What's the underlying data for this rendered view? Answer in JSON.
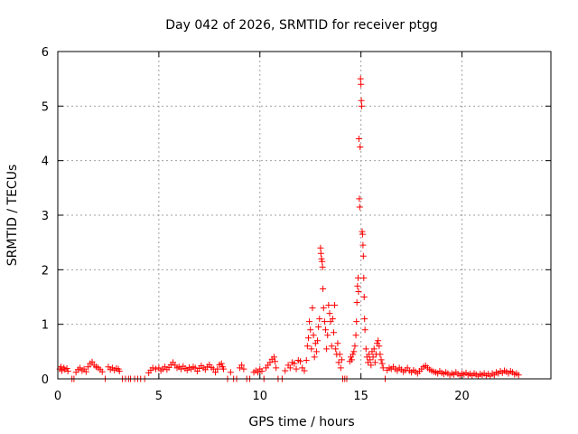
{
  "chart_data": {
    "type": "scatter",
    "title": "Day 042 of 2026, SRMTID for receiver ptgg",
    "xlabel": "GPS time / hours",
    "ylabel": "SRMTID / TECUs",
    "xlim": [
      0,
      24.4
    ],
    "ylim": [
      0,
      6
    ],
    "xticks": [
      0,
      5,
      10,
      15,
      20
    ],
    "yticks": [
      0,
      1,
      2,
      3,
      4,
      5,
      6
    ],
    "xtick_labels": [
      "0",
      "5",
      "10",
      "15",
      "20"
    ],
    "ytick_labels": [
      "0",
      "1",
      "2",
      "3",
      "4",
      "5",
      "6"
    ],
    "grid": true,
    "marker": "+",
    "series": [
      {
        "name": "SRMTID",
        "color": "#ff0000",
        "points": [
          [
            0.1,
            0.18
          ],
          [
            0.15,
            0.22
          ],
          [
            0.2,
            0.15
          ],
          [
            0.3,
            0.2
          ],
          [
            0.35,
            0.17
          ],
          [
            0.45,
            0.19
          ],
          [
            0.5,
            0.14
          ],
          [
            0.7,
            0.0
          ],
          [
            0.8,
            0.0
          ],
          [
            0.9,
            0.12
          ],
          [
            1.0,
            0.17
          ],
          [
            1.1,
            0.2
          ],
          [
            1.2,
            0.15
          ],
          [
            1.3,
            0.18
          ],
          [
            1.4,
            0.13
          ],
          [
            1.5,
            0.22
          ],
          [
            1.6,
            0.28
          ],
          [
            1.7,
            0.31
          ],
          [
            1.8,
            0.25
          ],
          [
            1.9,
            0.22
          ],
          [
            2.0,
            0.2
          ],
          [
            2.1,
            0.17
          ],
          [
            2.2,
            0.13
          ],
          [
            2.35,
            0.0
          ],
          [
            2.5,
            0.22
          ],
          [
            2.6,
            0.17
          ],
          [
            2.7,
            0.2
          ],
          [
            2.8,
            0.16
          ],
          [
            2.9,
            0.19
          ],
          [
            3.0,
            0.18
          ],
          [
            3.05,
            0.14
          ],
          [
            3.2,
            0.0
          ],
          [
            3.35,
            0.0
          ],
          [
            3.5,
            0.0
          ],
          [
            3.6,
            0.0
          ],
          [
            3.8,
            0.0
          ],
          [
            3.95,
            0.0
          ],
          [
            4.1,
            0.0
          ],
          [
            4.3,
            0.0
          ],
          [
            4.5,
            0.11
          ],
          [
            4.6,
            0.16
          ],
          [
            4.7,
            0.2
          ],
          [
            4.85,
            0.18
          ],
          [
            5.0,
            0.2
          ],
          [
            5.1,
            0.15
          ],
          [
            5.2,
            0.18
          ],
          [
            5.3,
            0.22
          ],
          [
            5.4,
            0.17
          ],
          [
            5.5,
            0.21
          ],
          [
            5.6,
            0.26
          ],
          [
            5.7,
            0.3
          ],
          [
            5.8,
            0.25
          ],
          [
            5.9,
            0.2
          ],
          [
            6.0,
            0.22
          ],
          [
            6.1,
            0.18
          ],
          [
            6.2,
            0.23
          ],
          [
            6.3,
            0.19
          ],
          [
            6.4,
            0.16
          ],
          [
            6.5,
            0.21
          ],
          [
            6.6,
            0.18
          ],
          [
            6.7,
            0.22
          ],
          [
            6.8,
            0.2
          ],
          [
            6.9,
            0.14
          ],
          [
            7.0,
            0.19
          ],
          [
            7.1,
            0.24
          ],
          [
            7.2,
            0.2
          ],
          [
            7.3,
            0.17
          ],
          [
            7.4,
            0.22
          ],
          [
            7.5,
            0.26
          ],
          [
            7.6,
            0.21
          ],
          [
            7.7,
            0.18
          ],
          [
            7.8,
            0.12
          ],
          [
            7.9,
            0.18
          ],
          [
            8.0,
            0.26
          ],
          [
            8.1,
            0.28
          ],
          [
            8.15,
            0.22
          ],
          [
            8.2,
            0.18
          ],
          [
            8.4,
            0.0
          ],
          [
            8.55,
            0.12
          ],
          [
            8.7,
            0.0
          ],
          [
            8.85,
            0.0
          ],
          [
            9.0,
            0.2
          ],
          [
            9.1,
            0.25
          ],
          [
            9.2,
            0.18
          ],
          [
            9.35,
            0.0
          ],
          [
            9.5,
            0.0
          ],
          [
            9.7,
            0.12
          ],
          [
            9.8,
            0.15
          ],
          [
            9.9,
            0.12
          ],
          [
            10.0,
            0.18
          ],
          [
            10.1,
            0.14
          ],
          [
            10.2,
            0.0
          ],
          [
            10.3,
            0.2
          ],
          [
            10.4,
            0.25
          ],
          [
            10.5,
            0.3
          ],
          [
            10.6,
            0.36
          ],
          [
            10.7,
            0.4
          ],
          [
            10.75,
            0.32
          ],
          [
            10.8,
            0.2
          ],
          [
            10.9,
            0.0
          ],
          [
            11.1,
            0.0
          ],
          [
            11.25,
            0.15
          ],
          [
            11.4,
            0.25
          ],
          [
            11.5,
            0.2
          ],
          [
            11.6,
            0.3
          ],
          [
            11.7,
            0.28
          ],
          [
            11.8,
            0.18
          ],
          [
            11.9,
            0.34
          ],
          [
            12.0,
            0.32
          ],
          [
            12.1,
            0.2
          ],
          [
            12.2,
            0.15
          ],
          [
            12.3,
            0.34
          ],
          [
            12.35,
            0.6
          ],
          [
            12.4,
            0.75
          ],
          [
            12.45,
            1.05
          ],
          [
            12.5,
            0.9
          ],
          [
            12.55,
            0.55
          ],
          [
            12.6,
            1.3
          ],
          [
            12.65,
            0.8
          ],
          [
            12.7,
            0.4
          ],
          [
            12.75,
            0.65
          ],
          [
            12.8,
            0.5
          ],
          [
            12.85,
            0.7
          ],
          [
            12.9,
            0.95
          ],
          [
            12.95,
            1.1
          ],
          [
            13.0,
            2.4
          ],
          [
            13.02,
            2.3
          ],
          [
            13.05,
            2.2
          ],
          [
            13.08,
            2.15
          ],
          [
            13.1,
            2.05
          ],
          [
            13.12,
            1.65
          ],
          [
            13.15,
            1.3
          ],
          [
            13.2,
            1.05
          ],
          [
            13.25,
            0.9
          ],
          [
            13.3,
            0.55
          ],
          [
            13.35,
            0.8
          ],
          [
            13.4,
            1.35
          ],
          [
            13.45,
            1.2
          ],
          [
            13.5,
            1.05
          ],
          [
            13.55,
            0.6
          ],
          [
            13.6,
            1.1
          ],
          [
            13.65,
            0.85
          ],
          [
            13.7,
            1.35
          ],
          [
            13.75,
            0.55
          ],
          [
            13.8,
            0.45
          ],
          [
            13.85,
            0.65
          ],
          [
            13.9,
            0.3
          ],
          [
            13.95,
            0.45
          ],
          [
            14.0,
            0.2
          ],
          [
            14.05,
            0.35
          ],
          [
            14.1,
            0.0
          ],
          [
            14.2,
            0.0
          ],
          [
            14.3,
            0.0
          ],
          [
            14.45,
            0.32
          ],
          [
            14.5,
            0.4
          ],
          [
            14.55,
            0.35
          ],
          [
            14.6,
            0.45
          ],
          [
            14.65,
            0.5
          ],
          [
            14.7,
            0.6
          ],
          [
            14.75,
            0.8
          ],
          [
            14.78,
            1.05
          ],
          [
            14.8,
            1.4
          ],
          [
            14.83,
            1.7
          ],
          [
            14.86,
            1.85
          ],
          [
            14.88,
            1.6
          ],
          [
            14.9,
            4.4
          ],
          [
            14.92,
            3.3
          ],
          [
            14.94,
            3.15
          ],
          [
            14.96,
            4.25
          ],
          [
            14.98,
            5.5
          ],
          [
            15.0,
            5.4
          ],
          [
            15.02,
            5.1
          ],
          [
            15.04,
            5.0
          ],
          [
            15.06,
            2.7
          ],
          [
            15.08,
            2.65
          ],
          [
            15.1,
            2.45
          ],
          [
            15.12,
            2.25
          ],
          [
            15.14,
            1.85
          ],
          [
            15.16,
            1.5
          ],
          [
            15.18,
            1.1
          ],
          [
            15.2,
            0.9
          ],
          [
            15.25,
            0.55
          ],
          [
            15.3,
            0.4
          ],
          [
            15.35,
            0.3
          ],
          [
            15.4,
            0.45
          ],
          [
            15.45,
            0.35
          ],
          [
            15.5,
            0.25
          ],
          [
            15.55,
            0.5
          ],
          [
            15.6,
            0.4
          ],
          [
            15.65,
            0.55
          ],
          [
            15.7,
            0.3
          ],
          [
            15.75,
            0.45
          ],
          [
            15.8,
            0.65
          ],
          [
            15.85,
            0.7
          ],
          [
            15.9,
            0.6
          ],
          [
            15.95,
            0.45
          ],
          [
            16.0,
            0.35
          ],
          [
            16.05,
            0.28
          ],
          [
            16.1,
            0.2
          ],
          [
            16.2,
            0.0
          ],
          [
            16.3,
            0.16
          ],
          [
            16.4,
            0.2
          ],
          [
            16.5,
            0.18
          ],
          [
            16.6,
            0.22
          ],
          [
            16.7,
            0.18
          ],
          [
            16.8,
            0.15
          ],
          [
            16.9,
            0.2
          ],
          [
            17.0,
            0.17
          ],
          [
            17.1,
            0.13
          ],
          [
            17.2,
            0.16
          ],
          [
            17.3,
            0.2
          ],
          [
            17.4,
            0.15
          ],
          [
            17.5,
            0.12
          ],
          [
            17.6,
            0.16
          ],
          [
            17.7,
            0.13
          ],
          [
            17.8,
            0.1
          ],
          [
            17.9,
            0.14
          ],
          [
            18.0,
            0.18
          ],
          [
            18.1,
            0.22
          ],
          [
            18.2,
            0.24
          ],
          [
            18.3,
            0.2
          ],
          [
            18.4,
            0.17
          ],
          [
            18.5,
            0.15
          ],
          [
            18.6,
            0.13
          ],
          [
            18.7,
            0.12
          ],
          [
            18.8,
            0.1
          ],
          [
            18.9,
            0.14
          ],
          [
            19.0,
            0.11
          ],
          [
            19.1,
            0.09
          ],
          [
            19.2,
            0.12
          ],
          [
            19.3,
            0.1
          ],
          [
            19.4,
            0.07
          ],
          [
            19.5,
            0.1
          ],
          [
            19.6,
            0.08
          ],
          [
            19.7,
            0.12
          ],
          [
            19.8,
            0.09
          ],
          [
            19.9,
            0.06
          ],
          [
            20.0,
            0.1
          ],
          [
            20.1,
            0.08
          ],
          [
            20.2,
            0.11
          ],
          [
            20.3,
            0.07
          ],
          [
            20.4,
            0.09
          ],
          [
            20.5,
            0.06
          ],
          [
            20.6,
            0.1
          ],
          [
            20.7,
            0.08
          ],
          [
            20.8,
            0.05
          ],
          [
            20.9,
            0.09
          ],
          [
            21.0,
            0.07
          ],
          [
            21.1,
            0.1
          ],
          [
            21.2,
            0.06
          ],
          [
            21.3,
            0.09
          ],
          [
            21.4,
            0.05
          ],
          [
            21.5,
            0.1
          ],
          [
            21.6,
            0.07
          ],
          [
            21.7,
            0.12
          ],
          [
            21.8,
            0.1
          ],
          [
            21.9,
            0.14
          ],
          [
            22.0,
            0.11
          ],
          [
            22.1,
            0.15
          ],
          [
            22.2,
            0.13
          ],
          [
            22.3,
            0.1
          ],
          [
            22.4,
            0.14
          ],
          [
            22.5,
            0.12
          ],
          [
            22.6,
            0.08
          ],
          [
            22.7,
            0.1
          ],
          [
            22.8,
            0.07
          ]
        ]
      }
    ]
  }
}
